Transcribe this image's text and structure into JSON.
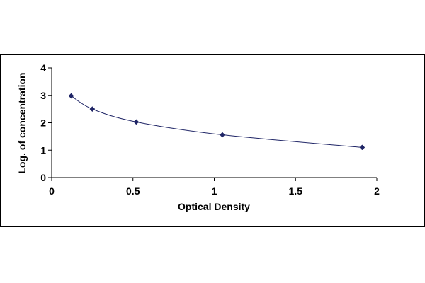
{
  "chart_data": {
    "type": "scatter",
    "xlabel": "Optical Density",
    "ylabel": "Log. of concentration",
    "xlim": [
      0,
      2
    ],
    "ylim": [
      0,
      4
    ],
    "xticks": [
      "0",
      "0.5",
      "1",
      "1.5",
      "2"
    ],
    "yticks": [
      "0",
      "1",
      "2",
      "3",
      "4"
    ],
    "legend": "none",
    "grid": false,
    "trendline": "smooth curve through points",
    "series": [
      {
        "x": [
          0.12,
          0.25,
          0.52,
          1.05,
          1.91
        ],
        "y": [
          2.98,
          2.5,
          2.03,
          1.56,
          1.1
        ]
      }
    ],
    "colors": {
      "marker": "#1F2566",
      "line": "#1F2566",
      "axis": "#000000",
      "frame": "#000000"
    }
  }
}
